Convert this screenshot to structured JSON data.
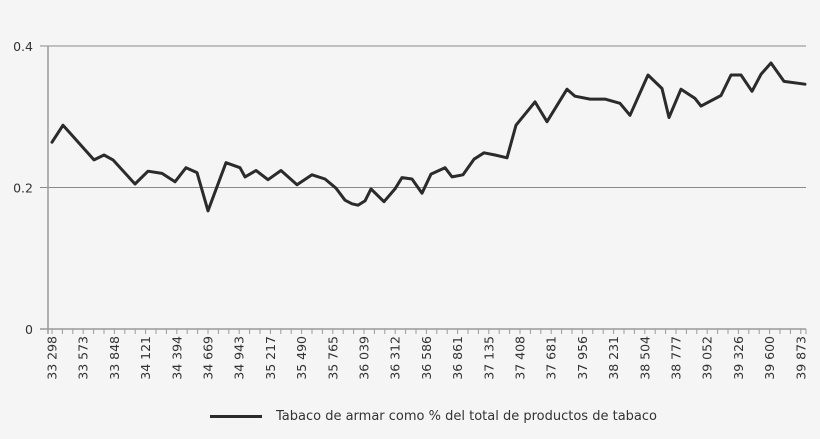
{
  "chart_data": {
    "type": "line",
    "title": "",
    "xlabel": "",
    "ylabel": "",
    "ylim": [
      0,
      0.4
    ],
    "yticks": [
      "0",
      "0.2",
      "0.4"
    ],
    "ytick_values": [
      0,
      0.2,
      0.4
    ],
    "grid": {
      "horizontal": true,
      "vertical": false
    },
    "legend_position": "bottom",
    "x_tick_count": 73,
    "categories": [
      "33 298",
      "33 573",
      "33 848",
      "34 121",
      "34 394",
      "34 669",
      "34 943",
      "35 217",
      "35 490",
      "35 765",
      "36 039",
      "36 312",
      "36 586",
      "36 861",
      "37 135",
      "37 408",
      "37 681",
      "37 956",
      "38 231",
      "38 504",
      "38 777",
      "39 052",
      "39 326",
      "39 600",
      "39 873"
    ],
    "label_every_n_ticks": 3,
    "series": [
      {
        "name": "Tabaco de armar como % del total de productos de tabaco",
        "color": "#2b2b2b",
        "points": [
          [
            0.0,
            0.264
          ],
          [
            1.06,
            0.288
          ],
          [
            4.04,
            0.239
          ],
          [
            5.0,
            0.246
          ],
          [
            5.87,
            0.239
          ],
          [
            7.98,
            0.205
          ],
          [
            9.23,
            0.223
          ],
          [
            10.58,
            0.22
          ],
          [
            11.83,
            0.208
          ],
          [
            12.88,
            0.228
          ],
          [
            13.94,
            0.221
          ],
          [
            15.0,
            0.167
          ],
          [
            16.73,
            0.235
          ],
          [
            18.08,
            0.228
          ],
          [
            18.56,
            0.215
          ],
          [
            19.62,
            0.224
          ],
          [
            20.77,
            0.211
          ],
          [
            22.02,
            0.224
          ],
          [
            23.56,
            0.204
          ],
          [
            25.0,
            0.218
          ],
          [
            26.25,
            0.212
          ],
          [
            27.31,
            0.199
          ],
          [
            28.17,
            0.182
          ],
          [
            28.85,
            0.177
          ],
          [
            29.42,
            0.175
          ],
          [
            30.1,
            0.181
          ],
          [
            30.67,
            0.198
          ],
          [
            31.92,
            0.18
          ],
          [
            32.98,
            0.198
          ],
          [
            33.65,
            0.214
          ],
          [
            34.62,
            0.212
          ],
          [
            35.58,
            0.192
          ],
          [
            36.44,
            0.219
          ],
          [
            37.79,
            0.228
          ],
          [
            38.46,
            0.215
          ],
          [
            39.52,
            0.218
          ],
          [
            40.58,
            0.24
          ],
          [
            41.54,
            0.249
          ],
          [
            42.6,
            0.246
          ],
          [
            43.75,
            0.242
          ],
          [
            44.62,
            0.288
          ],
          [
            46.44,
            0.321
          ],
          [
            47.6,
            0.293
          ],
          [
            49.52,
            0.339
          ],
          [
            50.29,
            0.329
          ],
          [
            51.73,
            0.325
          ],
          [
            53.17,
            0.325
          ],
          [
            54.62,
            0.319
          ],
          [
            55.58,
            0.302
          ],
          [
            57.31,
            0.359
          ],
          [
            58.65,
            0.34
          ],
          [
            59.33,
            0.299
          ],
          [
            60.48,
            0.339
          ],
          [
            61.83,
            0.326
          ],
          [
            62.4,
            0.315
          ],
          [
            64.33,
            0.33
          ],
          [
            65.29,
            0.359
          ],
          [
            66.25,
            0.359
          ],
          [
            67.31,
            0.336
          ],
          [
            68.17,
            0.36
          ],
          [
            69.13,
            0.376
          ],
          [
            70.38,
            0.35
          ],
          [
            72.4,
            0.346
          ]
        ]
      }
    ]
  },
  "legend": {
    "items": [
      {
        "label": "Tabaco de armar como % del total de productos de tabaco",
        "color": "#2b2b2b"
      }
    ]
  }
}
